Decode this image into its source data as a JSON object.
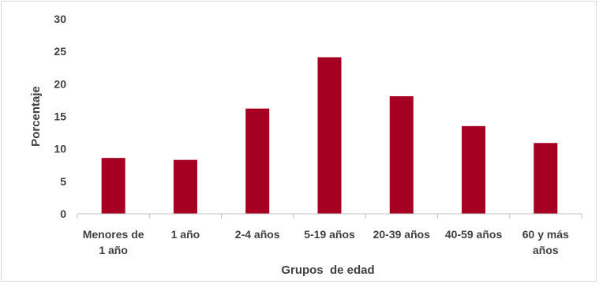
{
  "chart_data": {
    "type": "bar",
    "title": "",
    "xlabel": "Grupos  de edad",
    "ylabel": "Porcentaje",
    "ylim": [
      0,
      30
    ],
    "yticks": [
      0,
      5,
      10,
      15,
      20,
      25,
      30
    ],
    "grid": false,
    "categories": [
      [
        "Menores de",
        "1 año"
      ],
      [
        "1 año"
      ],
      [
        "2-4 años"
      ],
      [
        "5-19 años"
      ],
      [
        "20-39 años"
      ],
      [
        "40-59 años"
      ],
      [
        "60 y más",
        "años"
      ]
    ],
    "values": [
      8.6,
      8.3,
      16.2,
      24.1,
      18.1,
      13.5,
      10.9
    ],
    "bar_color": "#a50021"
  }
}
